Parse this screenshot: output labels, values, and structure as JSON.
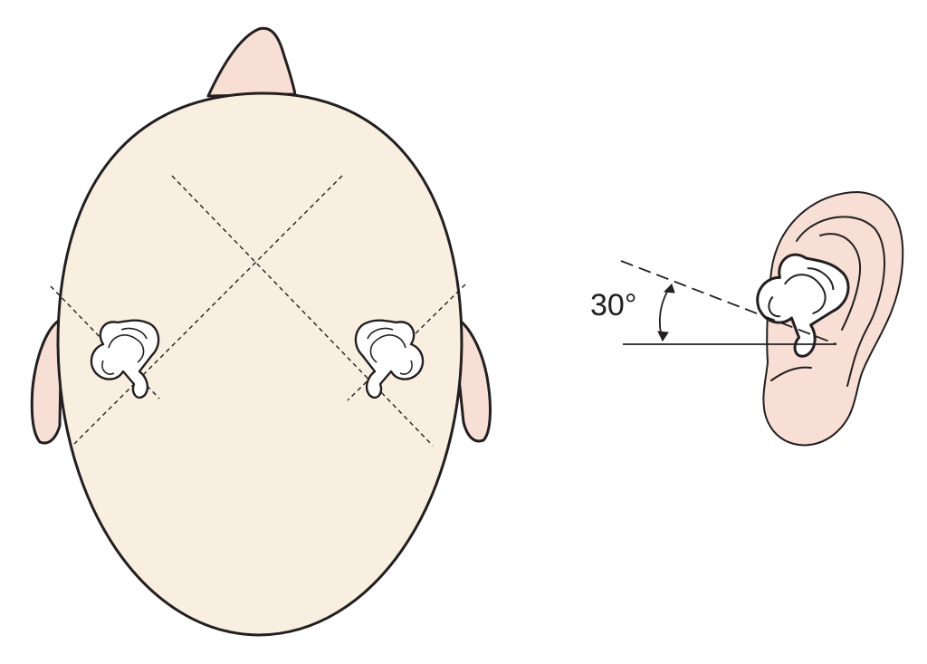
{
  "colors": {
    "head_fill": "#f9efe1",
    "skin_fill": "#f8dfd5",
    "canal_fill": "#ffffff",
    "line": "#231f20"
  },
  "icons": {
    "head": "head-top-view-icon",
    "inner_ear": "semicircular-canals-icon",
    "side_ear": "external-ear-side-view-icon"
  },
  "angle": {
    "label": "30°",
    "degrees": 30
  }
}
